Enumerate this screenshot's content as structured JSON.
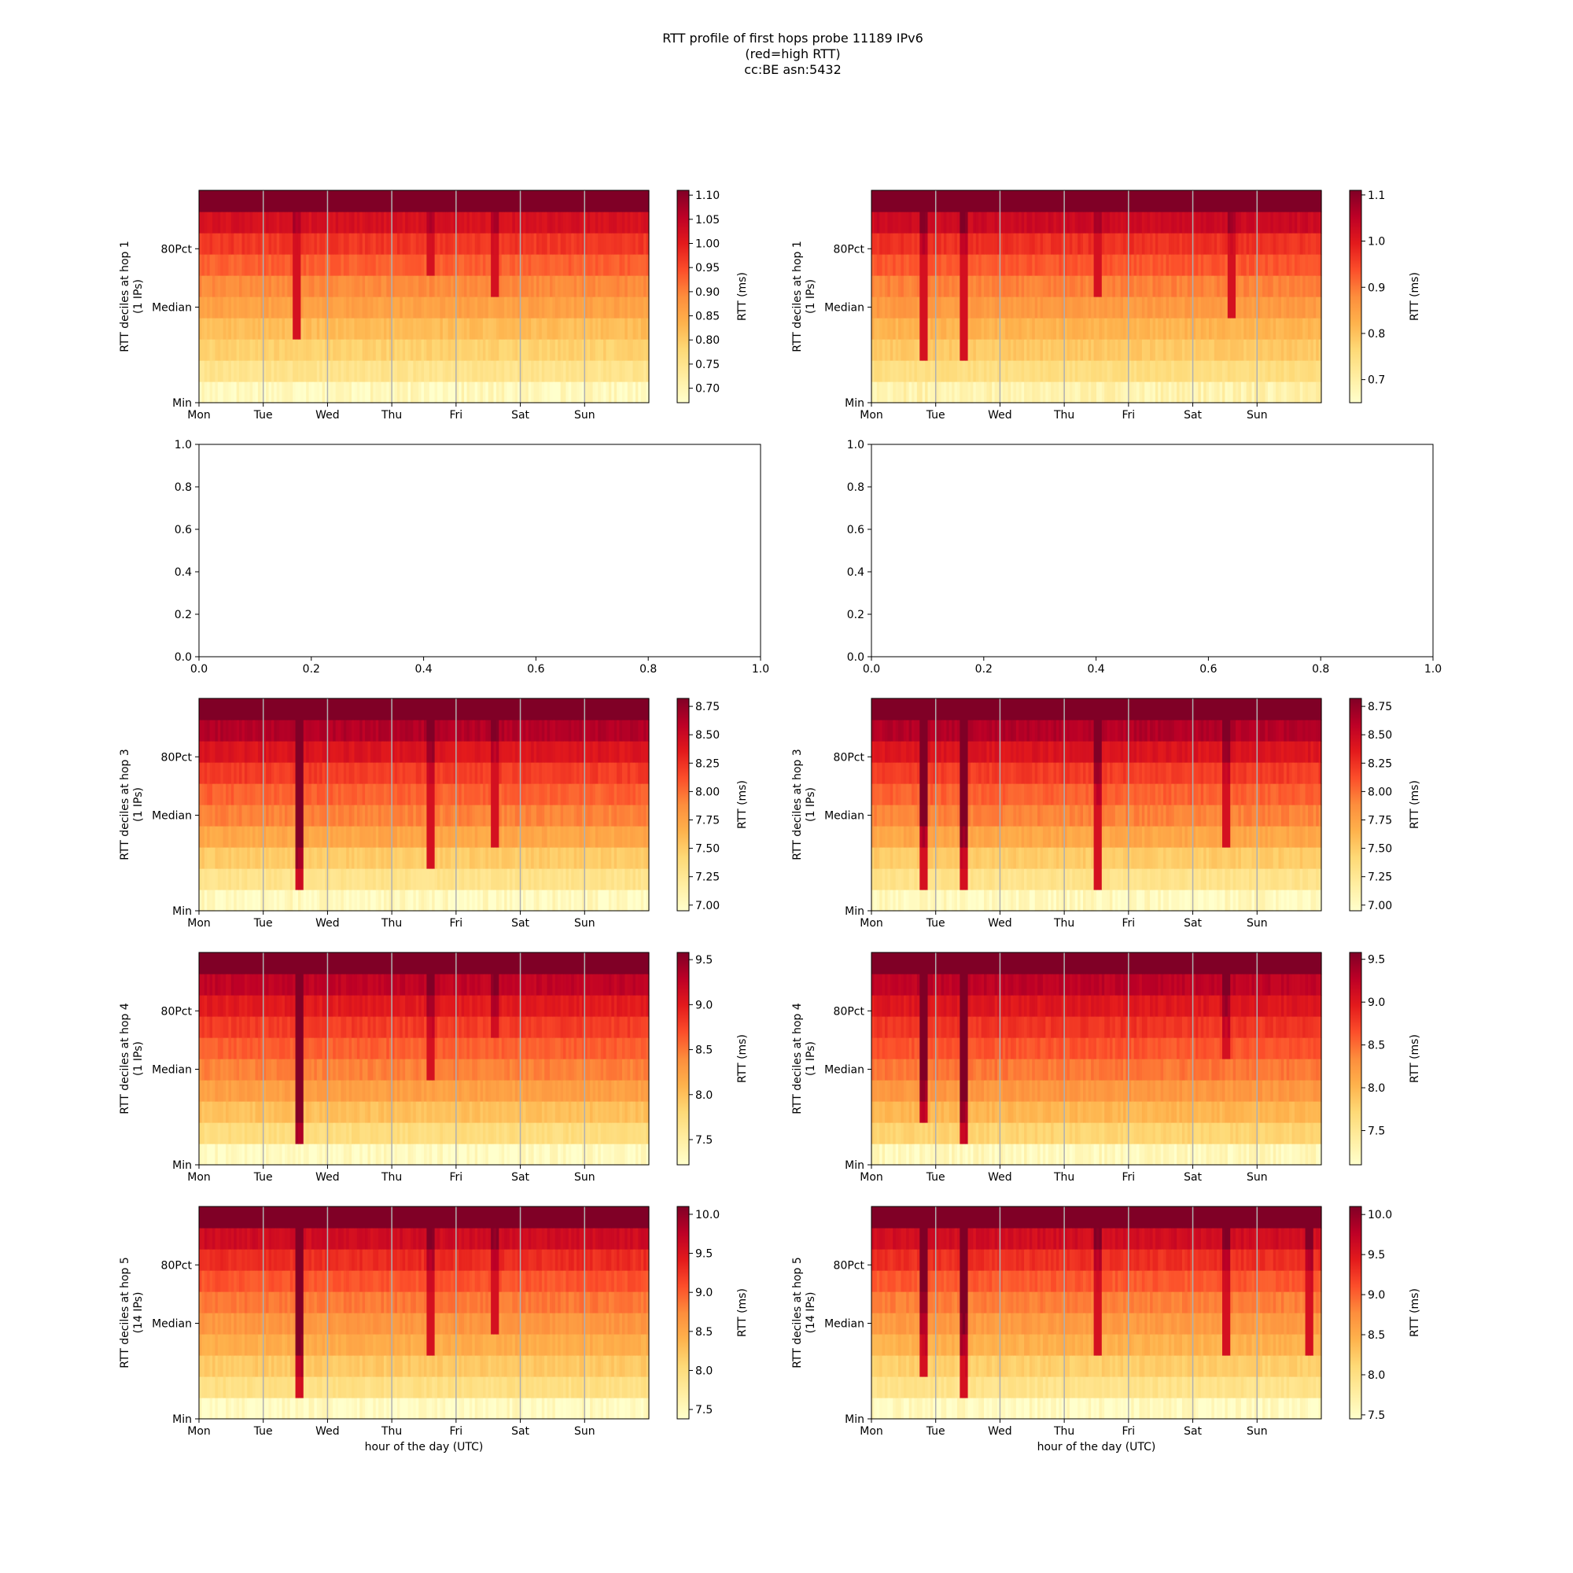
{
  "figure": {
    "title_lines": [
      "RTT profile of first hops probe 11189 IPv6",
      "(red=high RTT)",
      "cc:BE asn:5432"
    ]
  },
  "colormap": [
    "#ffffcc",
    "#ffeda0",
    "#fed976",
    "#feb24c",
    "#fd8d3c",
    "#fc4e2a",
    "#e31a1c",
    "#bd0026",
    "#800026"
  ],
  "chart_data": [
    {
      "id": "hop1-left",
      "type": "heatmap",
      "col": 0,
      "row": 0,
      "ylabel_lines": [
        "RTT deciles at hop 1",
        "(1 IPs)"
      ],
      "x_tick_labels": [
        "Mon",
        "Tue",
        "Wed",
        "Thu",
        "Fri",
        "Sat",
        "Sun"
      ],
      "y_tick_labels": [
        "Min",
        "Median",
        "80Pct"
      ],
      "xlabel": "",
      "colorbar": {
        "label": "RTT (ms)",
        "min": 0.67,
        "max": 1.11,
        "ticks": [
          "0.70",
          "0.75",
          "0.80",
          "0.85",
          "0.90",
          "0.95",
          "1.00",
          "1.05",
          "1.10"
        ]
      },
      "row_values": [
        0.69,
        0.75,
        0.79,
        0.82,
        0.86,
        0.89,
        0.93,
        0.97,
        1.02,
        1.11
      ],
      "spikes": [
        {
          "day": 1.5,
          "rows_from": 3,
          "intensity": 0.05
        },
        {
          "day": 3.6,
          "rows_from": 6,
          "intensity": 0.04
        },
        {
          "day": 4.6,
          "rows_from": 5,
          "intensity": 0.05
        }
      ]
    },
    {
      "id": "hop1-right",
      "type": "heatmap",
      "col": 1,
      "row": 0,
      "ylabel_lines": [
        "RTT deciles at hop 1",
        "(1 IPs)"
      ],
      "x_tick_labels": [
        "Mon",
        "Tue",
        "Wed",
        "Thu",
        "Fri",
        "Sat",
        "Sun"
      ],
      "y_tick_labels": [
        "Min",
        "Median",
        "80Pct"
      ],
      "xlabel": "",
      "colorbar": {
        "label": "RTT (ms)",
        "min": 0.65,
        "max": 1.11,
        "ticks": [
          "0.7",
          "0.8",
          "0.9",
          "1.0",
          "1.1"
        ]
      },
      "row_values": [
        0.69,
        0.75,
        0.79,
        0.82,
        0.86,
        0.89,
        0.93,
        0.97,
        1.03,
        1.11
      ],
      "spikes": [
        {
          "day": 0.8,
          "rows_from": 2,
          "intensity": 0.08
        },
        {
          "day": 1.4,
          "rows_from": 2,
          "intensity": 0.08
        },
        {
          "day": 3.5,
          "rows_from": 5,
          "intensity": 0.05
        },
        {
          "day": 5.6,
          "rows_from": 4,
          "intensity": 0.05
        }
      ]
    },
    {
      "id": "empty-left",
      "type": "empty",
      "col": 0,
      "row": 1,
      "x_tick_labels": [
        "0.0",
        "0.2",
        "0.4",
        "0.6",
        "0.8",
        "1.0"
      ],
      "y_tick_labels": [
        "0.0",
        "0.2",
        "0.4",
        "0.6",
        "0.8",
        "1.0"
      ],
      "xlim": [
        0,
        1
      ],
      "ylim": [
        0,
        1
      ]
    },
    {
      "id": "empty-right",
      "type": "empty",
      "col": 1,
      "row": 1,
      "x_tick_labels": [
        "0.0",
        "0.2",
        "0.4",
        "0.6",
        "0.8",
        "1.0"
      ],
      "y_tick_labels": [
        "0.0",
        "0.2",
        "0.4",
        "0.6",
        "0.8",
        "1.0"
      ],
      "xlim": [
        0,
        1
      ],
      "ylim": [
        0,
        1
      ]
    },
    {
      "id": "hop3-left",
      "type": "heatmap",
      "col": 0,
      "row": 2,
      "ylabel_lines": [
        "RTT deciles at hop 3",
        "(1 IPs)"
      ],
      "x_tick_labels": [
        "Mon",
        "Tue",
        "Wed",
        "Thu",
        "Fri",
        "Sat",
        "Sun"
      ],
      "y_tick_labels": [
        "Min",
        "Median",
        "80Pct"
      ],
      "xlabel": "",
      "colorbar": {
        "label": "RTT (ms)",
        "min": 6.95,
        "max": 8.82,
        "ticks": [
          "7.00",
          "7.25",
          "7.50",
          "7.75",
          "8.00",
          "8.25",
          "8.50",
          "8.75"
        ]
      },
      "row_values": [
        7.02,
        7.3,
        7.5,
        7.72,
        7.92,
        8.05,
        8.2,
        8.4,
        8.62,
        8.82
      ],
      "spikes": [
        {
          "day": 1.55,
          "rows_from": 1,
          "intensity": 1.2
        },
        {
          "day": 3.6,
          "rows_from": 2,
          "intensity": 0.3
        },
        {
          "day": 4.6,
          "rows_from": 3,
          "intensity": 0.2
        }
      ]
    },
    {
      "id": "hop3-right",
      "type": "heatmap",
      "col": 1,
      "row": 2,
      "ylabel_lines": [
        "RTT deciles at hop 3",
        "(1 IPs)"
      ],
      "x_tick_labels": [
        "Mon",
        "Tue",
        "Wed",
        "Thu",
        "Fri",
        "Sat",
        "Sun"
      ],
      "y_tick_labels": [
        "Min",
        "Median",
        "80Pct"
      ],
      "xlabel": "",
      "colorbar": {
        "label": "RTT (ms)",
        "min": 6.95,
        "max": 8.82,
        "ticks": [
          "7.00",
          "7.25",
          "7.50",
          "7.75",
          "8.00",
          "8.25",
          "8.50",
          "8.75"
        ]
      },
      "row_values": [
        7.02,
        7.3,
        7.5,
        7.72,
        7.92,
        8.05,
        8.2,
        8.4,
        8.62,
        8.82
      ],
      "spikes": [
        {
          "day": 0.8,
          "rows_from": 1,
          "intensity": 0.9
        },
        {
          "day": 1.4,
          "rows_from": 1,
          "intensity": 1.0
        },
        {
          "day": 3.5,
          "rows_from": 1,
          "intensity": 0.5
        },
        {
          "day": 5.5,
          "rows_from": 3,
          "intensity": 0.3
        }
      ]
    },
    {
      "id": "hop4-left",
      "type": "heatmap",
      "col": 0,
      "row": 3,
      "ylabel_lines": [
        "RTT deciles at hop 4",
        "(1 IPs)"
      ],
      "x_tick_labels": [
        "Mon",
        "Tue",
        "Wed",
        "Thu",
        "Fri",
        "Sat",
        "Sun"
      ],
      "y_tick_labels": [
        "Min",
        "Median",
        "80Pct"
      ],
      "xlabel": "",
      "colorbar": {
        "label": "RTT (ms)",
        "min": 7.22,
        "max": 9.58,
        "ticks": [
          "7.5",
          "8.0",
          "8.5",
          "9.0",
          "9.5"
        ]
      },
      "row_values": [
        7.28,
        7.75,
        8.0,
        8.25,
        8.45,
        8.62,
        8.8,
        9.0,
        9.25,
        9.58
      ],
      "spikes": [
        {
          "day": 1.55,
          "rows_from": 1,
          "intensity": 1.6
        },
        {
          "day": 3.6,
          "rows_from": 4,
          "intensity": 0.4
        },
        {
          "day": 4.6,
          "rows_from": 6,
          "intensity": 0.3
        }
      ]
    },
    {
      "id": "hop4-right",
      "type": "heatmap",
      "col": 1,
      "row": 3,
      "ylabel_lines": [
        "RTT deciles at hop 4",
        "(1 IPs)"
      ],
      "x_tick_labels": [
        "Mon",
        "Tue",
        "Wed",
        "Thu",
        "Fri",
        "Sat",
        "Sun"
      ],
      "y_tick_labels": [
        "Min",
        "Median",
        "80Pct"
      ],
      "xlabel": "",
      "colorbar": {
        "label": "RTT (ms)",
        "min": 7.1,
        "max": 9.58,
        "ticks": [
          "7.5",
          "8.0",
          "8.5",
          "9.0",
          "9.5"
        ]
      },
      "row_values": [
        7.2,
        7.75,
        8.0,
        8.25,
        8.45,
        8.62,
        8.8,
        9.0,
        9.25,
        9.58
      ],
      "spikes": [
        {
          "day": 0.8,
          "rows_from": 2,
          "intensity": 1.2
        },
        {
          "day": 1.4,
          "rows_from": 1,
          "intensity": 1.4
        },
        {
          "day": 5.5,
          "rows_from": 5,
          "intensity": 0.4
        }
      ]
    },
    {
      "id": "hop5-left",
      "type": "heatmap",
      "col": 0,
      "row": 4,
      "ylabel_lines": [
        "RTT deciles at hop 5",
        "(14 IPs)"
      ],
      "x_tick_labels": [
        "Mon",
        "Tue",
        "Wed",
        "Thu",
        "Fri",
        "Sat",
        "Sun"
      ],
      "y_tick_labels": [
        "Min",
        "Median",
        "80Pct"
      ],
      "xlabel": "hour of the day (UTC)",
      "colorbar": {
        "label": "RTT (ms)",
        "min": 7.38,
        "max": 10.1,
        "ticks": [
          "7.5",
          "8.0",
          "8.5",
          "9.0",
          "9.5",
          "10.0"
        ]
      },
      "row_values": [
        7.45,
        7.95,
        8.2,
        8.45,
        8.65,
        8.85,
        9.05,
        9.3,
        9.6,
        10.1
      ],
      "spikes": [
        {
          "day": 1.55,
          "rows_from": 1,
          "intensity": 1.6
        },
        {
          "day": 3.6,
          "rows_from": 3,
          "intensity": 0.5
        },
        {
          "day": 4.6,
          "rows_from": 4,
          "intensity": 0.4
        }
      ]
    },
    {
      "id": "hop5-right",
      "type": "heatmap",
      "col": 1,
      "row": 4,
      "ylabel_lines": [
        "RTT deciles at hop 5",
        "(14 IPs)"
      ],
      "x_tick_labels": [
        "Mon",
        "Tue",
        "Wed",
        "Thu",
        "Fri",
        "Sat",
        "Sun"
      ],
      "y_tick_labels": [
        "Min",
        "Median",
        "80Pct"
      ],
      "xlabel": "hour of the day (UTC)",
      "colorbar": {
        "label": "RTT (ms)",
        "min": 7.45,
        "max": 10.1,
        "ticks": [
          "7.5",
          "8.0",
          "8.5",
          "9.0",
          "9.5",
          "10.0"
        ]
      },
      "row_values": [
        7.52,
        7.95,
        8.2,
        8.45,
        8.65,
        8.85,
        9.05,
        9.3,
        9.6,
        10.1
      ],
      "spikes": [
        {
          "day": 0.8,
          "rows_from": 2,
          "intensity": 1.2
        },
        {
          "day": 1.4,
          "rows_from": 1,
          "intensity": 1.4
        },
        {
          "day": 3.5,
          "rows_from": 3,
          "intensity": 0.5
        },
        {
          "day": 5.5,
          "rows_from": 3,
          "intensity": 0.5
        },
        {
          "day": 6.8,
          "rows_from": 3,
          "intensity": 0.5
        }
      ]
    }
  ]
}
